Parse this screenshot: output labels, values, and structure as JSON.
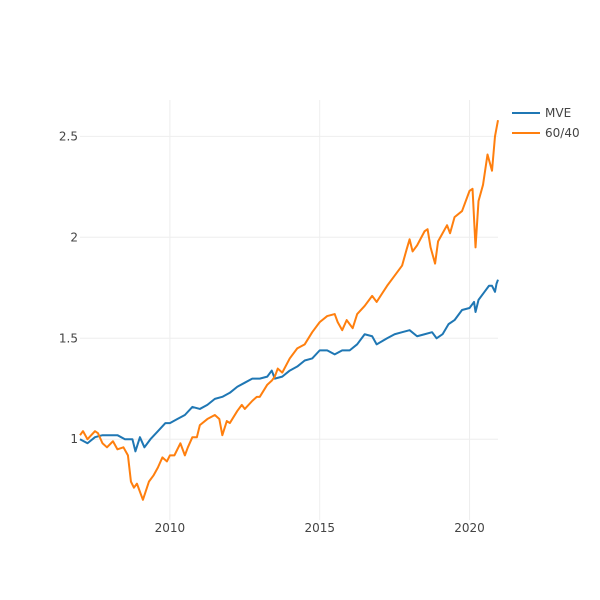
{
  "chart_data": {
    "type": "line",
    "title": "",
    "xlabel": "",
    "ylabel": "",
    "xlim": [
      2007.0,
      2020.95
    ],
    "ylim": [
      0.6,
      2.68
    ],
    "x_ticks": [
      2010,
      2015,
      2020
    ],
    "x_tick_labels": [
      "2010",
      "2015",
      "2020"
    ],
    "y_ticks": [
      1.0,
      1.5,
      2.0,
      2.5
    ],
    "y_tick_labels": [
      "1",
      "1.5",
      "2",
      "2.5"
    ],
    "grid": true,
    "legend_position": "top-right",
    "series": [
      {
        "name": "MVE",
        "color": "#1f77b4",
        "points": [
          [
            2007.0,
            1.0
          ],
          [
            2007.25,
            0.98
          ],
          [
            2007.5,
            1.01
          ],
          [
            2007.75,
            1.02
          ],
          [
            2008.0,
            1.02
          ],
          [
            2008.25,
            1.02
          ],
          [
            2008.5,
            1.0
          ],
          [
            2008.75,
            1.0
          ],
          [
            2008.85,
            0.94
          ],
          [
            2009.0,
            1.01
          ],
          [
            2009.15,
            0.96
          ],
          [
            2009.35,
            1.0
          ],
          [
            2009.6,
            1.04
          ],
          [
            2009.85,
            1.08
          ],
          [
            2010.0,
            1.08
          ],
          [
            2010.25,
            1.1
          ],
          [
            2010.5,
            1.12
          ],
          [
            2010.75,
            1.16
          ],
          [
            2011.0,
            1.15
          ],
          [
            2011.25,
            1.17
          ],
          [
            2011.5,
            1.2
          ],
          [
            2011.75,
            1.21
          ],
          [
            2012.0,
            1.23
          ],
          [
            2012.25,
            1.26
          ],
          [
            2012.5,
            1.28
          ],
          [
            2012.75,
            1.3
          ],
          [
            2013.0,
            1.3
          ],
          [
            2013.25,
            1.31
          ],
          [
            2013.4,
            1.34
          ],
          [
            2013.5,
            1.3
          ],
          [
            2013.75,
            1.31
          ],
          [
            2014.0,
            1.34
          ],
          [
            2014.25,
            1.36
          ],
          [
            2014.5,
            1.39
          ],
          [
            2014.75,
            1.4
          ],
          [
            2015.0,
            1.44
          ],
          [
            2015.25,
            1.44
          ],
          [
            2015.5,
            1.42
          ],
          [
            2015.75,
            1.44
          ],
          [
            2016.0,
            1.44
          ],
          [
            2016.25,
            1.47
          ],
          [
            2016.5,
            1.52
          ],
          [
            2016.75,
            1.51
          ],
          [
            2016.9,
            1.47
          ],
          [
            2017.25,
            1.5
          ],
          [
            2017.5,
            1.52
          ],
          [
            2017.75,
            1.53
          ],
          [
            2018.0,
            1.54
          ],
          [
            2018.25,
            1.51
          ],
          [
            2018.5,
            1.52
          ],
          [
            2018.75,
            1.53
          ],
          [
            2018.9,
            1.5
          ],
          [
            2019.1,
            1.52
          ],
          [
            2019.3,
            1.57
          ],
          [
            2019.5,
            1.59
          ],
          [
            2019.75,
            1.64
          ],
          [
            2020.0,
            1.65
          ],
          [
            2020.15,
            1.68
          ],
          [
            2020.2,
            1.63
          ],
          [
            2020.3,
            1.69
          ],
          [
            2020.5,
            1.73
          ],
          [
            2020.65,
            1.76
          ],
          [
            2020.75,
            1.76
          ],
          [
            2020.85,
            1.73
          ],
          [
            2020.9,
            1.77
          ],
          [
            2020.95,
            1.79
          ]
        ]
      },
      {
        "name": "60/40",
        "color": "#ff7f0e",
        "points": [
          [
            2007.0,
            1.02
          ],
          [
            2007.1,
            1.04
          ],
          [
            2007.25,
            1.0
          ],
          [
            2007.5,
            1.04
          ],
          [
            2007.6,
            1.03
          ],
          [
            2007.75,
            0.98
          ],
          [
            2007.9,
            0.96
          ],
          [
            2008.1,
            0.99
          ],
          [
            2008.25,
            0.95
          ],
          [
            2008.45,
            0.96
          ],
          [
            2008.6,
            0.92
          ],
          [
            2008.7,
            0.79
          ],
          [
            2008.8,
            0.76
          ],
          [
            2008.9,
            0.78
          ],
          [
            2009.1,
            0.7
          ],
          [
            2009.3,
            0.79
          ],
          [
            2009.45,
            0.82
          ],
          [
            2009.6,
            0.86
          ],
          [
            2009.75,
            0.91
          ],
          [
            2009.9,
            0.89
          ],
          [
            2010.0,
            0.92
          ],
          [
            2010.15,
            0.92
          ],
          [
            2010.35,
            0.98
          ],
          [
            2010.5,
            0.92
          ],
          [
            2010.6,
            0.96
          ],
          [
            2010.75,
            1.01
          ],
          [
            2010.9,
            1.01
          ],
          [
            2011.0,
            1.07
          ],
          [
            2011.25,
            1.1
          ],
          [
            2011.5,
            1.12
          ],
          [
            2011.65,
            1.1
          ],
          [
            2011.75,
            1.02
          ],
          [
            2011.9,
            1.09
          ],
          [
            2012.0,
            1.08
          ],
          [
            2012.25,
            1.14
          ],
          [
            2012.4,
            1.17
          ],
          [
            2012.5,
            1.15
          ],
          [
            2012.75,
            1.19
          ],
          [
            2012.9,
            1.21
          ],
          [
            2013.0,
            1.21
          ],
          [
            2013.25,
            1.27
          ],
          [
            2013.4,
            1.29
          ],
          [
            2013.5,
            1.31
          ],
          [
            2013.6,
            1.35
          ],
          [
            2013.75,
            1.33
          ],
          [
            2014.0,
            1.4
          ],
          [
            2014.25,
            1.45
          ],
          [
            2014.5,
            1.47
          ],
          [
            2014.75,
            1.53
          ],
          [
            2015.0,
            1.58
          ],
          [
            2015.25,
            1.61
          ],
          [
            2015.5,
            1.62
          ],
          [
            2015.6,
            1.58
          ],
          [
            2015.75,
            1.54
          ],
          [
            2015.9,
            1.59
          ],
          [
            2016.1,
            1.55
          ],
          [
            2016.25,
            1.62
          ],
          [
            2016.5,
            1.66
          ],
          [
            2016.75,
            1.71
          ],
          [
            2016.9,
            1.68
          ],
          [
            2017.25,
            1.76
          ],
          [
            2017.5,
            1.81
          ],
          [
            2017.75,
            1.86
          ],
          [
            2017.9,
            1.94
          ],
          [
            2018.0,
            1.99
          ],
          [
            2018.1,
            1.93
          ],
          [
            2018.25,
            1.96
          ],
          [
            2018.5,
            2.03
          ],
          [
            2018.6,
            2.04
          ],
          [
            2018.7,
            1.95
          ],
          [
            2018.85,
            1.87
          ],
          [
            2018.95,
            1.98
          ],
          [
            2019.1,
            2.02
          ],
          [
            2019.25,
            2.06
          ],
          [
            2019.35,
            2.02
          ],
          [
            2019.5,
            2.1
          ],
          [
            2019.75,
            2.13
          ],
          [
            2020.0,
            2.23
          ],
          [
            2020.1,
            2.24
          ],
          [
            2020.2,
            1.95
          ],
          [
            2020.3,
            2.18
          ],
          [
            2020.45,
            2.26
          ],
          [
            2020.6,
            2.41
          ],
          [
            2020.75,
            2.33
          ],
          [
            2020.85,
            2.5
          ],
          [
            2020.95,
            2.58
          ]
        ]
      }
    ]
  }
}
